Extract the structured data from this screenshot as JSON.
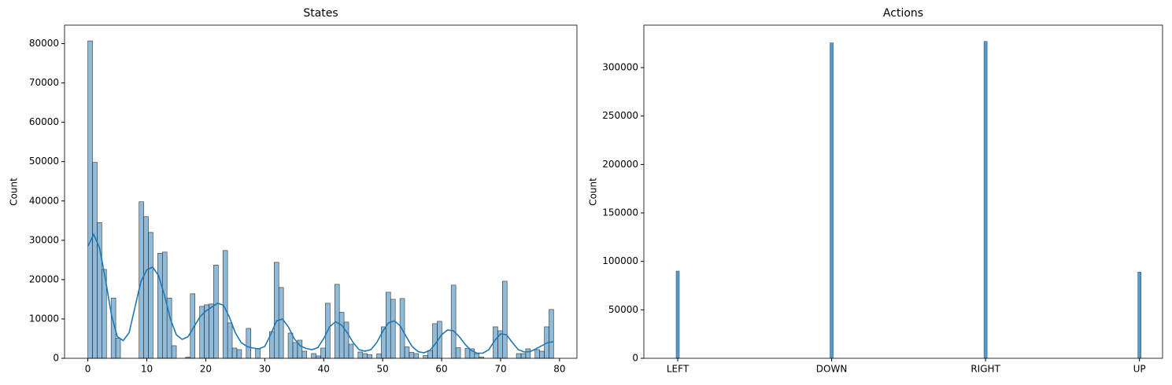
{
  "chart_data": [
    {
      "type": "histogram",
      "title": "States",
      "ylabel": "Count",
      "color": "#1f77b4",
      "bins": [
        0,
        0.79,
        1.58,
        2.37,
        3.16,
        3.95,
        4.74,
        5.53,
        6.32,
        7.11,
        7.9,
        8.69,
        9.48,
        10.27,
        11.06,
        11.85,
        12.64,
        13.43,
        14.22,
        15.01,
        15.8,
        16.59,
        17.38,
        18.17,
        18.96,
        19.75,
        20.54,
        21.33,
        22.12,
        22.91,
        23.7,
        24.49,
        25.28,
        26.07,
        26.86,
        27.65,
        28.44,
        29.23,
        30.02,
        30.81,
        31.6,
        32.39,
        33.18,
        33.97,
        34.76,
        35.55,
        36.34,
        37.13,
        37.92,
        38.71,
        39.5,
        40.29,
        41.08,
        41.87,
        42.66,
        43.45,
        44.24,
        45.03,
        45.82,
        46.61,
        47.4,
        48.19,
        48.98,
        49.77,
        50.56,
        51.35,
        52.14,
        52.93,
        53.72,
        54.51,
        55.3,
        56.09,
        56.88,
        57.67,
        58.46,
        59.25,
        60.04,
        60.83,
        61.62,
        62.41,
        63.2,
        63.99,
        64.78,
        65.57,
        66.36,
        67.15,
        67.94,
        68.73,
        69.52,
        70.31,
        71.1,
        71.89,
        72.68,
        73.47,
        74.26,
        75.05,
        75.84,
        76.63,
        77.42,
        78.21,
        79
      ],
      "values": [
        80700,
        49800,
        34500,
        22600,
        0,
        15300,
        5100,
        0,
        0,
        0,
        0,
        39800,
        36000,
        32000,
        0,
        26700,
        27000,
        15300,
        3200,
        0,
        0,
        300,
        16400,
        0,
        13200,
        13600,
        13800,
        23700,
        0,
        27400,
        9000,
        2600,
        2200,
        0,
        7600,
        0,
        2500,
        0,
        0,
        6800,
        24400,
        18000,
        0,
        6400,
        4000,
        4600,
        1800,
        0,
        1200,
        600,
        2600,
        14000,
        0,
        18800,
        11700,
        9200,
        3600,
        0,
        1600,
        1200,
        900,
        0,
        1100,
        8000,
        16800,
        15000,
        0,
        15200,
        2900,
        1500,
        1200,
        0,
        700,
        2000,
        8800,
        9400,
        0,
        0,
        18600,
        2700,
        0,
        2500,
        2400,
        1200,
        300,
        0,
        0,
        8000,
        7000,
        19600,
        0,
        0,
        1200,
        1200,
        2400,
        0,
        2200,
        1800,
        8000,
        12400
      ],
      "kde": {
        "x": [
          0,
          1,
          2,
          3,
          4,
          5,
          6,
          7,
          8,
          9,
          10,
          11,
          12,
          13,
          14,
          15,
          16,
          17,
          18,
          19,
          20,
          21,
          22,
          23,
          24,
          25,
          26,
          27,
          28,
          29,
          30,
          31,
          32,
          33,
          34,
          35,
          36,
          37,
          38,
          39,
          40,
          41,
          42,
          43,
          44,
          45,
          46,
          47,
          48,
          49,
          50,
          51,
          52,
          53,
          54,
          55,
          56,
          57,
          58,
          59,
          60,
          61,
          62,
          63,
          64,
          65,
          66,
          67,
          68,
          69,
          70,
          71,
          72,
          73,
          74,
          75,
          76,
          77,
          78,
          79
        ],
        "values": [
          28500,
          31500,
          28000,
          20000,
          11000,
          5500,
          4500,
          6500,
          13000,
          19500,
          22500,
          23200,
          21000,
          16000,
          10000,
          6000,
          4800,
          5500,
          8000,
          10500,
          12000,
          13000,
          14000,
          13500,
          10500,
          6500,
          4000,
          3000,
          2600,
          2400,
          3000,
          6000,
          9500,
          10000,
          8000,
          5000,
          3200,
          2500,
          2200,
          2700,
          5000,
          8000,
          9300,
          8500,
          6500,
          4000,
          2200,
          1800,
          2200,
          4000,
          6800,
          9000,
          9500,
          8200,
          5500,
          3000,
          1700,
          1400,
          2000,
          3800,
          6000,
          7200,
          7000,
          5500,
          3500,
          2000,
          1300,
          1300,
          2200,
          4500,
          6200,
          6000,
          4000,
          2200,
          1600,
          1700,
          2400,
          3200,
          4000,
          4200
        ]
      },
      "xlim": [
        -3.95,
        82.95
      ],
      "xticks": [
        0,
        10,
        20,
        30,
        40,
        50,
        60,
        70,
        80
      ],
      "ylim": [
        0,
        84700
      ],
      "yticks": [
        0,
        10000,
        20000,
        30000,
        40000,
        50000,
        60000,
        70000,
        80000
      ]
    },
    {
      "type": "bar",
      "title": "Actions",
      "ylabel": "Count",
      "color": "#1f77b4",
      "categories": [
        "LEFT",
        "DOWN",
        "RIGHT",
        "UP"
      ],
      "values": [
        90000,
        325500,
        327000,
        89000
      ],
      "xlim": [
        -0.22,
        3.15
      ],
      "ylim": [
        0,
        343800
      ],
      "yticks": [
        0,
        50000,
        100000,
        150000,
        200000,
        250000,
        300000
      ]
    }
  ]
}
